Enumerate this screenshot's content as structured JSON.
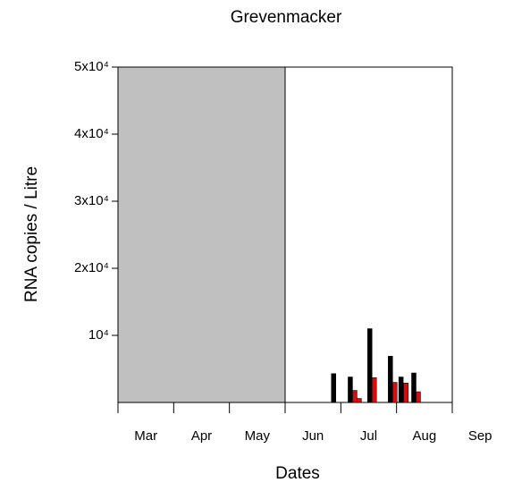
{
  "chart_data": {
    "type": "bar",
    "title": "Grevenmacker",
    "xlabel": "Dates",
    "ylabel": "RNA copies / Litre",
    "categories": [
      "Mar",
      "Apr",
      "May",
      "Jun",
      "Jul",
      "Aug",
      "Sep"
    ],
    "xlim": [
      0,
      6
    ],
    "xticks": [
      0,
      1,
      2,
      3,
      4,
      5,
      6
    ],
    "shaded_xrange": [
      0,
      3
    ],
    "shade_color": "#c0c0c0",
    "ylim": [
      0,
      50000
    ],
    "yticks": [
      {
        "value": 10000,
        "label": "10⁴"
      },
      {
        "value": 20000,
        "label": "2x10⁴"
      },
      {
        "value": 30000,
        "label": "3x10⁴"
      },
      {
        "value": 40000,
        "label": "4x10⁴"
      },
      {
        "value": 50000,
        "label": "5x10⁴"
      }
    ],
    "series": [
      {
        "color": "#000000",
        "x": [
          3.87,
          4.17,
          4.52,
          4.89,
          5.08,
          5.31
        ],
        "values": [
          4300,
          3800,
          11000,
          6900,
          3800,
          4400
        ]
      },
      {
        "color": "#d01010",
        "x": [
          4.25,
          4.33,
          4.6,
          4.97,
          5.17,
          5.39
        ],
        "values": [
          1800,
          600,
          3700,
          3000,
          2900,
          1600
        ]
      }
    ]
  }
}
